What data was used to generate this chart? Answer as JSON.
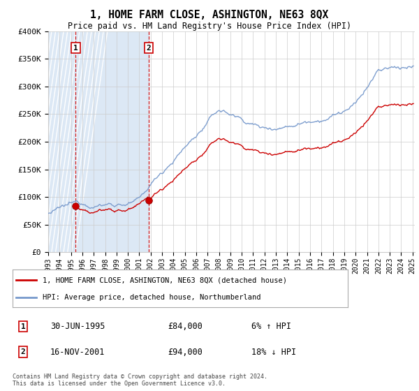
{
  "title": "1, HOME FARM CLOSE, ASHINGTON, NE63 8QX",
  "subtitle": "Price paid vs. HM Land Registry's House Price Index (HPI)",
  "legend_line1": "1, HOME FARM CLOSE, ASHINGTON, NE63 8QX (detached house)",
  "legend_line2": "HPI: Average price, detached house, Northumberland",
  "purchase1_date": "30-JUN-1995",
  "purchase1_price": 84000,
  "purchase1_hpi": "6% ↑ HPI",
  "purchase2_date": "16-NOV-2001",
  "purchase2_price": 94000,
  "purchase2_hpi": "18% ↓ HPI",
  "footer": "Contains HM Land Registry data © Crown copyright and database right 2024.\nThis data is licensed under the Open Government Licence v3.0.",
  "ylim": [
    0,
    400000
  ],
  "yticks": [
    0,
    50000,
    100000,
    150000,
    200000,
    250000,
    300000,
    350000,
    400000
  ],
  "price_color": "#cc0000",
  "hpi_color": "#7799cc",
  "marker_color": "#cc0000",
  "vline_color": "#cc0000",
  "grid_color": "#cccccc",
  "hatch_color": "#dce8f5",
  "between_color": "#dce8f5"
}
